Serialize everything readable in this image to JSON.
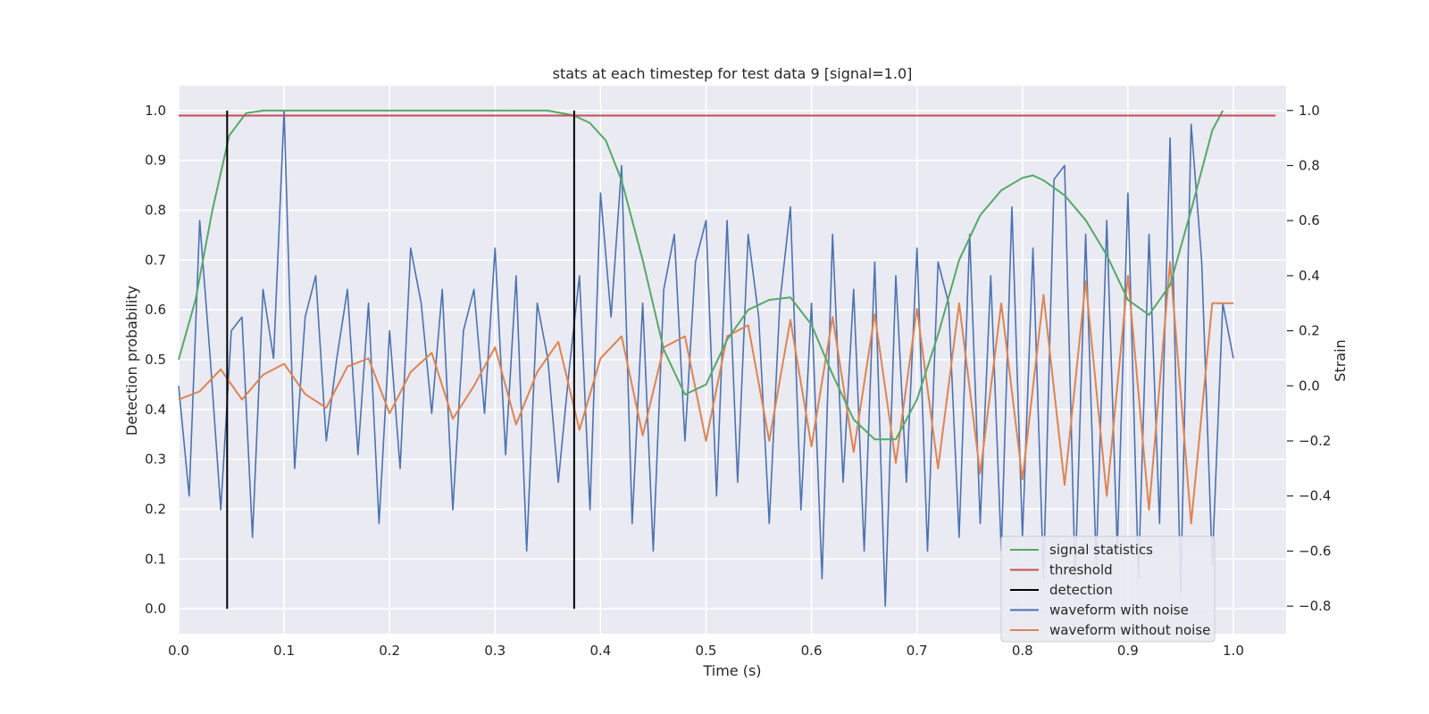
{
  "chart_data": {
    "type": "line",
    "title": "stats at each timestep for test data 9 [signal=1.0]",
    "xlabel": "Time (s)",
    "ylabel_left": "Detection probability",
    "ylabel_right": "Strain",
    "xlim": [
      0.0,
      1.05
    ],
    "ylim_left": [
      -0.05,
      1.05
    ],
    "ylim_right": [
      -0.9,
      1.09
    ],
    "x_ticks": [
      "0.0",
      "0.1",
      "0.2",
      "0.3",
      "0.4",
      "0.5",
      "0.6",
      "0.7",
      "0.8",
      "0.9",
      "1.0"
    ],
    "y_left_ticks": [
      "0.0",
      "0.1",
      "0.2",
      "0.3",
      "0.4",
      "0.5",
      "0.6",
      "0.7",
      "0.8",
      "0.9",
      "1.0"
    ],
    "y_right_ticks": [
      "−0.8",
      "−0.6",
      "−0.4",
      "−0.2",
      "0.0",
      "0.2",
      "0.4",
      "0.6",
      "0.8",
      "1.0"
    ],
    "grid": true,
    "legend_position": "bottom-right",
    "colors": {
      "background": "#eaeaf2",
      "grid": "#ffffff",
      "signal_statistics": "#55a868",
      "threshold": "#c44e52",
      "detection": "#000000",
      "waveform_with_noise": "#4c72b0",
      "waveform_without_noise": "#dd8452"
    },
    "series": [
      {
        "name": "signal statistics",
        "axis": "left",
        "x": [
          0.0,
          0.016,
          0.032,
          0.048,
          0.064,
          0.08,
          0.1,
          0.15,
          0.2,
          0.25,
          0.3,
          0.35,
          0.375,
          0.39,
          0.405,
          0.42,
          0.44,
          0.46,
          0.48,
          0.5,
          0.52,
          0.54,
          0.56,
          0.58,
          0.6,
          0.62,
          0.64,
          0.66,
          0.68,
          0.7,
          0.72,
          0.74,
          0.76,
          0.78,
          0.8,
          0.81,
          0.82,
          0.84,
          0.86,
          0.88,
          0.9,
          0.92,
          0.94,
          0.96,
          0.98,
          0.99
        ],
        "y": [
          0.5,
          0.62,
          0.8,
          0.95,
          0.995,
          1.0,
          1.0,
          1.0,
          1.0,
          1.0,
          1.0,
          1.0,
          0.99,
          0.975,
          0.94,
          0.86,
          0.7,
          0.52,
          0.43,
          0.45,
          0.54,
          0.6,
          0.62,
          0.625,
          0.57,
          0.47,
          0.38,
          0.34,
          0.34,
          0.42,
          0.55,
          0.7,
          0.79,
          0.84,
          0.865,
          0.87,
          0.86,
          0.83,
          0.78,
          0.71,
          0.62,
          0.59,
          0.65,
          0.8,
          0.96,
          1.0
        ]
      },
      {
        "name": "threshold",
        "axis": "left",
        "x": [
          0.0,
          1.04
        ],
        "y": [
          0.99,
          0.99
        ]
      },
      {
        "name": "detection",
        "axis": "left",
        "x": [
          0.046,
          0.375
        ],
        "y": [
          1.0,
          1.0
        ]
      },
      {
        "name": "waveform with noise",
        "axis": "right",
        "x": [
          0.0,
          0.01,
          0.02,
          0.03,
          0.04,
          0.05,
          0.06,
          0.07,
          0.08,
          0.09,
          0.1,
          0.11,
          0.12,
          0.13,
          0.14,
          0.15,
          0.16,
          0.17,
          0.18,
          0.19,
          0.2,
          0.21,
          0.22,
          0.23,
          0.24,
          0.25,
          0.26,
          0.27,
          0.28,
          0.29,
          0.3,
          0.31,
          0.32,
          0.33,
          0.34,
          0.35,
          0.36,
          0.37,
          0.38,
          0.39,
          0.4,
          0.41,
          0.42,
          0.43,
          0.44,
          0.45,
          0.46,
          0.47,
          0.48,
          0.49,
          0.5,
          0.51,
          0.52,
          0.53,
          0.54,
          0.55,
          0.56,
          0.57,
          0.58,
          0.59,
          0.6,
          0.61,
          0.62,
          0.63,
          0.64,
          0.65,
          0.66,
          0.67,
          0.68,
          0.69,
          0.7,
          0.71,
          0.72,
          0.73,
          0.74,
          0.75,
          0.76,
          0.77,
          0.78,
          0.79,
          0.8,
          0.81,
          0.82,
          0.83,
          0.84,
          0.85,
          0.86,
          0.87,
          0.88,
          0.89,
          0.9,
          0.91,
          0.92,
          0.93,
          0.94,
          0.95,
          0.96,
          0.97,
          0.98,
          0.99,
          1.0
        ],
        "y": [
          0.0,
          -0.4,
          0.6,
          0.1,
          -0.45,
          0.2,
          0.25,
          -0.55,
          0.35,
          0.1,
          1.0,
          -0.3,
          0.25,
          0.4,
          -0.2,
          0.1,
          0.35,
          -0.25,
          0.3,
          -0.5,
          0.2,
          -0.3,
          0.5,
          0.3,
          -0.1,
          0.35,
          -0.45,
          0.2,
          0.35,
          -0.1,
          0.5,
          -0.25,
          0.4,
          -0.6,
          0.3,
          0.1,
          -0.35,
          0.05,
          0.4,
          -0.45,
          0.7,
          0.25,
          0.8,
          -0.5,
          0.3,
          -0.6,
          0.35,
          0.55,
          -0.2,
          0.45,
          0.6,
          -0.4,
          0.6,
          -0.35,
          0.55,
          0.25,
          -0.5,
          0.3,
          0.65,
          -0.45,
          0.3,
          -0.7,
          0.55,
          -0.35,
          0.35,
          -0.6,
          0.45,
          -0.8,
          0.4,
          -0.35,
          0.5,
          -0.6,
          0.45,
          0.3,
          -0.55,
          0.55,
          -0.5,
          0.4,
          -0.6,
          0.65,
          -0.55,
          0.5,
          -0.7,
          0.75,
          0.8,
          -0.7,
          0.55,
          -0.65,
          0.6,
          -0.6,
          0.7,
          -0.7,
          0.55,
          -0.5,
          0.9,
          -0.75,
          0.95,
          0.45,
          -0.65,
          0.3,
          0.1
        ]
      },
      {
        "name": "waveform without noise",
        "axis": "right",
        "x": [
          0.0,
          0.02,
          0.04,
          0.06,
          0.08,
          0.1,
          0.12,
          0.14,
          0.16,
          0.18,
          0.2,
          0.22,
          0.24,
          0.26,
          0.28,
          0.3,
          0.32,
          0.34,
          0.36,
          0.38,
          0.4,
          0.42,
          0.44,
          0.46,
          0.48,
          0.5,
          0.52,
          0.54,
          0.56,
          0.58,
          0.6,
          0.62,
          0.64,
          0.66,
          0.68,
          0.7,
          0.72,
          0.74,
          0.76,
          0.78,
          0.8,
          0.82,
          0.84,
          0.86,
          0.88,
          0.9,
          0.92,
          0.94,
          0.96,
          0.98,
          1.0
        ],
        "y": [
          -0.05,
          -0.02,
          0.06,
          -0.05,
          0.04,
          0.08,
          -0.03,
          -0.08,
          0.07,
          0.1,
          -0.1,
          0.05,
          0.12,
          -0.12,
          0.0,
          0.14,
          -0.14,
          0.05,
          0.16,
          -0.16,
          0.1,
          0.18,
          -0.18,
          0.14,
          0.18,
          -0.2,
          0.18,
          0.22,
          -0.2,
          0.24,
          -0.22,
          0.25,
          -0.24,
          0.26,
          -0.28,
          0.28,
          -0.3,
          0.3,
          -0.32,
          0.3,
          -0.34,
          0.33,
          -0.36,
          0.38,
          -0.4,
          0.4,
          -0.45,
          0.45,
          -0.5,
          0.3,
          0.3
        ]
      }
    ],
    "legend": [
      "signal statistics",
      "threshold",
      "detection",
      "waveform with noise",
      "waveform without noise"
    ]
  }
}
